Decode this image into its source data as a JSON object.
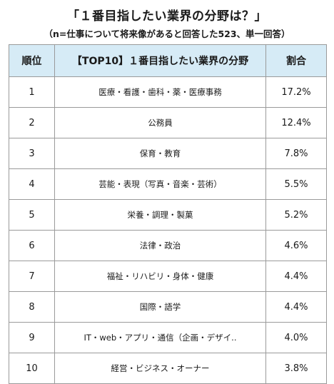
{
  "title": "「１番目指したい業界の分野は？」",
  "subtitle": "（n=仕事について将来像があると回答した523、単一回答）",
  "chart_data": {
    "type": "table",
    "title": "「１番目指したい業界の分野は？」",
    "subtitle": "（n=仕事について将来像があると回答した523、単一回答）",
    "columns": [
      "順位",
      "【TOP10】１番目指したい業界の分野",
      "割合"
    ],
    "rows": [
      {
        "rank": "1",
        "field": "医療・看護・歯科・薬・医療事務",
        "share": "17.2%"
      },
      {
        "rank": "2",
        "field": "公務員",
        "share": "12.4%"
      },
      {
        "rank": "3",
        "field": "保育・教育",
        "share": "7.8%"
      },
      {
        "rank": "4",
        "field": "芸能・表現（写真・音楽・芸術）",
        "share": "5.5%"
      },
      {
        "rank": "5",
        "field": "栄養・調理・製菓",
        "share": "5.2%"
      },
      {
        "rank": "6",
        "field": "法律・政治",
        "share": "4.6%"
      },
      {
        "rank": "7",
        "field": "福祉・リハビリ・身体・健康",
        "share": "4.4%"
      },
      {
        "rank": "8",
        "field": "国際・語学",
        "share": "4.4%"
      },
      {
        "rank": "9",
        "field": "IT・web・アプリ・通信（企画・デザイ..",
        "share": "4.0%"
      },
      {
        "rank": "10",
        "field": "経営・ビジネス・オーナー",
        "share": "3.8%"
      }
    ],
    "header_color": "#d6ebf6",
    "border_color": "#9a9a9a"
  }
}
